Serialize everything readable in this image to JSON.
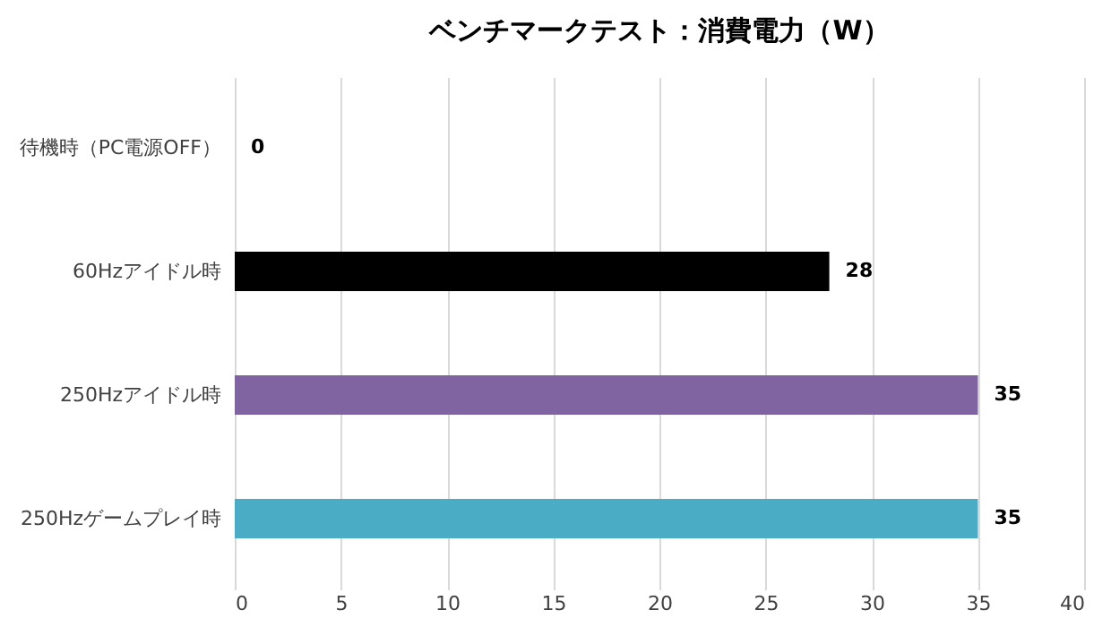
{
  "chart_data": {
    "type": "bar",
    "orientation": "horizontal",
    "title": "ベンチマークテスト：消費電力（W）",
    "categories": [
      "待機時（PC電源OFF）",
      "60Hzアイドル時",
      "250Hzアイドル時",
      "250Hzゲームプレイ時"
    ],
    "values": [
      0,
      28,
      35,
      35
    ],
    "colors": [
      "#000000",
      "#000000",
      "#8064a2",
      "#4bacc6"
    ],
    "xlim": [
      0,
      40
    ],
    "xticks": [
      0,
      5,
      10,
      15,
      20,
      25,
      30,
      35,
      40
    ],
    "grid": "x",
    "data_labels": true
  }
}
